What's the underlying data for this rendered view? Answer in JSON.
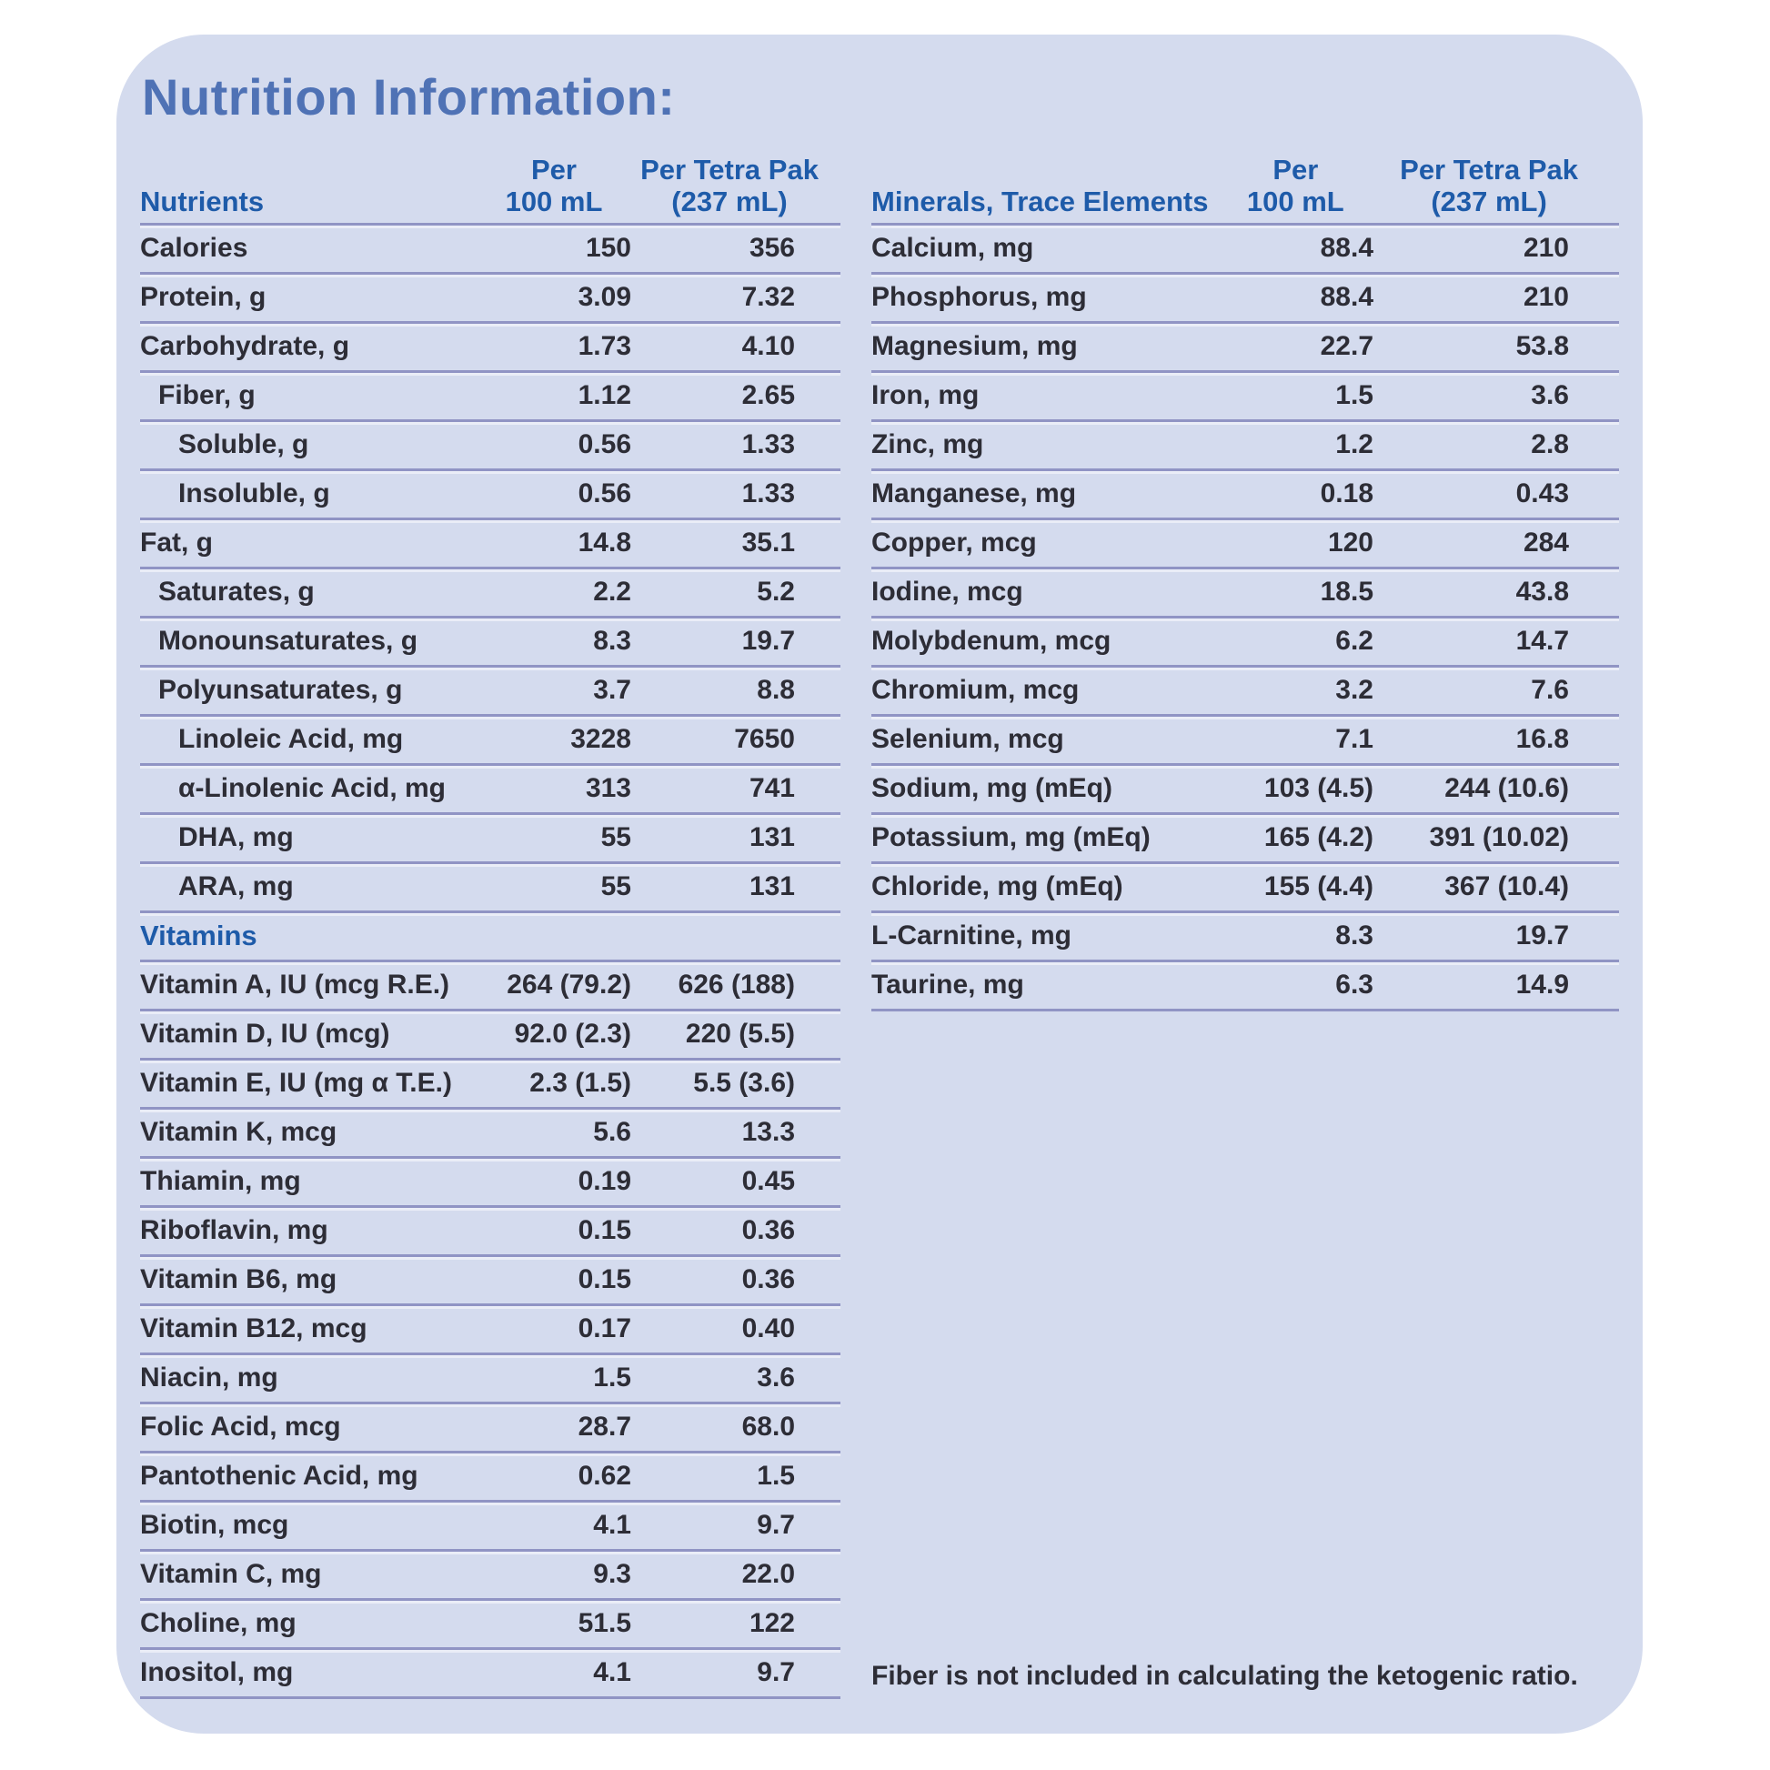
{
  "title": "Nutrition Information:",
  "footnote": "Fiber is not included in calculating the ketogenic ratio.",
  "colors": {
    "card_bg": "#d4dbee",
    "title_blue": "#4f72b5",
    "head_blue": "#1e5ba9",
    "text": "#2d2d36",
    "line": "#9094c4"
  },
  "left_table": {
    "header": {
      "label": "Nutrients",
      "per_label": "Per",
      "per_unit": "100 mL",
      "pak_label": "Per Tetra Pak",
      "pak_unit": "(237 mL)"
    },
    "rows": [
      {
        "label": "Calories",
        "indent": 0,
        "per_100ml": "150",
        "per_pak": "356"
      },
      {
        "label": "Protein, g",
        "indent": 0,
        "per_100ml": "3.09",
        "per_pak": "7.32"
      },
      {
        "label": "Carbohydrate, g",
        "indent": 0,
        "per_100ml": "1.73",
        "per_pak": "4.10"
      },
      {
        "label": "Fiber, g",
        "indent": 1,
        "per_100ml": "1.12",
        "per_pak": "2.65"
      },
      {
        "label": "Soluble, g",
        "indent": 2,
        "per_100ml": "0.56",
        "per_pak": "1.33"
      },
      {
        "label": "Insoluble, g",
        "indent": 2,
        "per_100ml": "0.56",
        "per_pak": "1.33"
      },
      {
        "label": "Fat, g",
        "indent": 0,
        "per_100ml": "14.8",
        "per_pak": "35.1"
      },
      {
        "label": "Saturates, g",
        "indent": 1,
        "per_100ml": "2.2",
        "per_pak": "5.2"
      },
      {
        "label": "Monounsaturates, g",
        "indent": 1,
        "per_100ml": "8.3",
        "per_pak": "19.7"
      },
      {
        "label": "Polyunsaturates, g",
        "indent": 1,
        "per_100ml": "3.7",
        "per_pak": "8.8"
      },
      {
        "label": "Linoleic Acid, mg",
        "indent": 2,
        "per_100ml": "3228",
        "per_pak": "7650"
      },
      {
        "label": "α-Linolenic Acid, mg",
        "indent": 2,
        "per_100ml": "313",
        "per_pak": "741"
      },
      {
        "label": "DHA, mg",
        "indent": 2,
        "per_100ml": "55",
        "per_pak": "131"
      },
      {
        "label": "ARA, mg",
        "indent": 2,
        "per_100ml": "55",
        "per_pak": "131"
      },
      {
        "section": "Vitamins"
      },
      {
        "label": "Vitamin A, IU (mcg R.E.)",
        "indent": 0,
        "per_100ml": "264 (79.2)",
        "per_pak": "626 (188)"
      },
      {
        "label": "Vitamin D, IU (mcg)",
        "indent": 0,
        "per_100ml": "92.0 (2.3)",
        "per_pak": "220 (5.5)"
      },
      {
        "label": "Vitamin E, IU (mg α T.E.)",
        "indent": 0,
        "per_100ml": "2.3 (1.5)",
        "per_pak": "5.5 (3.6)"
      },
      {
        "label": "Vitamin K, mcg",
        "indent": 0,
        "per_100ml": "5.6",
        "per_pak": "13.3"
      },
      {
        "label": "Thiamin, mg",
        "indent": 0,
        "per_100ml": "0.19",
        "per_pak": "0.45"
      },
      {
        "label": "Riboflavin, mg",
        "indent": 0,
        "per_100ml": "0.15",
        "per_pak": "0.36"
      },
      {
        "label": "Vitamin B6, mg",
        "indent": 0,
        "per_100ml": "0.15",
        "per_pak": "0.36"
      },
      {
        "label": "Vitamin B12, mcg",
        "indent": 0,
        "per_100ml": "0.17",
        "per_pak": "0.40"
      },
      {
        "label": "Niacin, mg",
        "indent": 0,
        "per_100ml": "1.5",
        "per_pak": "3.6"
      },
      {
        "label": "Folic Acid, mcg",
        "indent": 0,
        "per_100ml": "28.7",
        "per_pak": "68.0"
      },
      {
        "label": "Pantothenic Acid, mg",
        "indent": 0,
        "per_100ml": "0.62",
        "per_pak": "1.5"
      },
      {
        "label": "Biotin, mcg",
        "indent": 0,
        "per_100ml": "4.1",
        "per_pak": "9.7"
      },
      {
        "label": "Vitamin C, mg",
        "indent": 0,
        "per_100ml": "9.3",
        "per_pak": "22.0"
      },
      {
        "label": "Choline, mg",
        "indent": 0,
        "per_100ml": "51.5",
        "per_pak": "122"
      },
      {
        "label": "Inositol, mg",
        "indent": 0,
        "per_100ml": "4.1",
        "per_pak": "9.7"
      }
    ]
  },
  "right_table": {
    "header": {
      "label": "Minerals, Trace Elements",
      "per_label": "Per",
      "per_unit": "100 mL",
      "pak_label": "Per Tetra Pak",
      "pak_unit": "(237 mL)"
    },
    "rows": [
      {
        "label": "Calcium, mg",
        "indent": 0,
        "per_100ml": "88.4",
        "per_pak": "210"
      },
      {
        "label": "Phosphorus, mg",
        "indent": 0,
        "per_100ml": "88.4",
        "per_pak": "210"
      },
      {
        "label": "Magnesium, mg",
        "indent": 0,
        "per_100ml": "22.7",
        "per_pak": "53.8"
      },
      {
        "label": "Iron, mg",
        "indent": 0,
        "per_100ml": "1.5",
        "per_pak": "3.6"
      },
      {
        "label": "Zinc, mg",
        "indent": 0,
        "per_100ml": "1.2",
        "per_pak": "2.8"
      },
      {
        "label": "Manganese, mg",
        "indent": 0,
        "per_100ml": "0.18",
        "per_pak": "0.43"
      },
      {
        "label": "Copper, mcg",
        "indent": 0,
        "per_100ml": "120",
        "per_pak": "284"
      },
      {
        "label": "Iodine, mcg",
        "indent": 0,
        "per_100ml": "18.5",
        "per_pak": "43.8"
      },
      {
        "label": "Molybdenum, mcg",
        "indent": 0,
        "per_100ml": "6.2",
        "per_pak": "14.7"
      },
      {
        "label": "Chromium, mcg",
        "indent": 0,
        "per_100ml": "3.2",
        "per_pak": "7.6"
      },
      {
        "label": "Selenium, mcg",
        "indent": 0,
        "per_100ml": "7.1",
        "per_pak": "16.8"
      },
      {
        "label": "Sodium, mg (mEq)",
        "indent": 0,
        "per_100ml": "103 (4.5)",
        "per_pak": "244 (10.6)"
      },
      {
        "label": "Potassium, mg (mEq)",
        "indent": 0,
        "per_100ml": "165 (4.2)",
        "per_pak": "391 (10.02)"
      },
      {
        "label": "Chloride, mg (mEq)",
        "indent": 0,
        "per_100ml": "155 (4.4)",
        "per_pak": "367 (10.4)"
      },
      {
        "label": "L-Carnitine, mg",
        "indent": 0,
        "per_100ml": "8.3",
        "per_pak": "19.7"
      },
      {
        "label": "Taurine, mg",
        "indent": 0,
        "per_100ml": "6.3",
        "per_pak": "14.9"
      }
    ]
  }
}
